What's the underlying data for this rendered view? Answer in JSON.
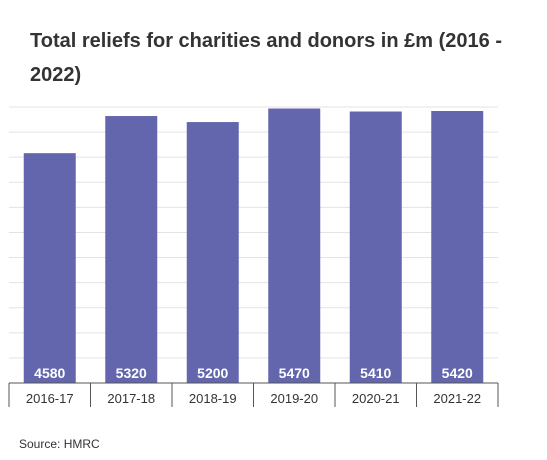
{
  "title": "Total reliefs for charities and donors in £m (2016 - 2022)",
  "source": "Source: HMRC",
  "chart_data": {
    "type": "bar",
    "title": "Total reliefs for charities and donors in £m (2016 - 2022)",
    "categories": [
      "2016-17",
      "2017-18",
      "2018-19",
      "2019-20",
      "2020-21",
      "2021-22"
    ],
    "values": [
      4580,
      5320,
      5200,
      5470,
      5410,
      5420
    ],
    "data_labels": [
      "4580",
      "5320",
      "5200",
      "5470",
      "5410",
      "5420"
    ],
    "xlabel": "",
    "ylabel": "",
    "ylim": [
      0,
      5500
    ],
    "grid": true,
    "bar_color": "#6366ad",
    "label_color": "#ffffff"
  }
}
